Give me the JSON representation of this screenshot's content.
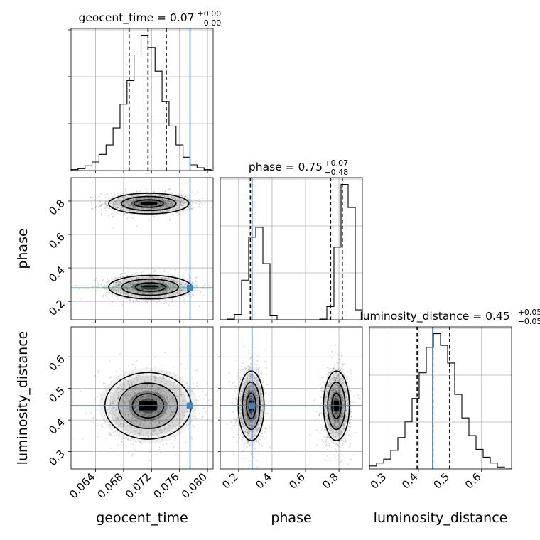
{
  "chart_data": {
    "type": "corner",
    "parameters": [
      "geocent_time",
      "phase",
      "luminosity_distance"
    ],
    "axis_labels": {
      "geocent_time": "geocent_time",
      "phase": "phase",
      "luminosity_distance": "luminosity_distance"
    },
    "ranges": {
      "geocent_time": [
        0.0605,
        0.0808
      ],
      "phase": [
        0.09,
        0.94
      ],
      "luminosity_distance": [
        0.245,
        0.695
      ]
    },
    "ticks": {
      "geocent_time": {
        "values": [
          0.064,
          0.068,
          0.072,
          0.076,
          0.08
        ],
        "labels": [
          "0.064",
          "0.068",
          "0.072",
          "0.076",
          "0.080"
        ]
      },
      "phase": {
        "values": [
          0.2,
          0.4,
          0.6,
          0.8
        ],
        "labels": [
          "0.2",
          "0.4",
          "0.6",
          "0.8"
        ]
      },
      "luminosity_distance": {
        "values": [
          0.3,
          0.4,
          0.5,
          0.6
        ],
        "labels": [
          "0.3",
          "0.4",
          "0.5",
          "0.6"
        ]
      }
    },
    "truths": {
      "geocent_time": 0.0775,
      "phase": 0.28,
      "luminosity_distance": 0.445
    },
    "titles": [
      {
        "param": "geocent_time",
        "name": "geocent_time",
        "median": "0.07",
        "plus": "+0.00",
        "minus": "−0.00"
      },
      {
        "param": "phase",
        "name": "phase",
        "median": "0.75",
        "plus": "+0.07",
        "minus": "−0.48"
      },
      {
        "param": "luminosity_distance",
        "name": "luminosity_distance",
        "median": "0.45",
        "plus": "+0.05",
        "minus": "−0.05"
      }
    ],
    "histograms": {
      "geocent_time": {
        "edges": [
          0.0605,
          0.0615,
          0.0625,
          0.0635,
          0.0645,
          0.0655,
          0.0665,
          0.0675,
          0.0685,
          0.0695,
          0.0705,
          0.0715,
          0.0725,
          0.0735,
          0.0745,
          0.0755,
          0.0765,
          0.0775,
          0.0785,
          0.0795,
          0.0805
        ],
        "counts": [
          1,
          2,
          5,
          9,
          17,
          27,
          45,
          70,
          95,
          122,
          143,
          130,
          105,
          73,
          47,
          27,
          14,
          6,
          3,
          1
        ],
        "quantiles": [
          0.0688,
          0.0715,
          0.0741
        ]
      },
      "phase": {
        "edges": [
          0.09,
          0.1325,
          0.175,
          0.2175,
          0.26,
          0.3025,
          0.345,
          0.3875,
          0.43,
          0.4725,
          0.515,
          0.5575,
          0.6,
          0.6425,
          0.685,
          0.7275,
          0.77,
          0.8125,
          0.855,
          0.8975,
          0.94
        ],
        "counts": [
          0,
          1,
          8,
          60,
          125,
          140,
          85,
          6,
          0,
          0,
          0,
          0,
          0,
          0,
          1,
          20,
          110,
          205,
          170,
          15
        ],
        "quantiles": [
          0.27,
          0.75,
          0.82
        ]
      },
      "luminosity_distance": {
        "edges": [
          0.245,
          0.2675,
          0.29,
          0.3125,
          0.335,
          0.3575,
          0.38,
          0.4025,
          0.425,
          0.4475,
          0.47,
          0.4925,
          0.515,
          0.5375,
          0.56,
          0.5825,
          0.605,
          0.6275,
          0.65,
          0.6725,
          0.695
        ],
        "counts": [
          3,
          6,
          10,
          19,
          32,
          48,
          72,
          98,
          124,
          138,
          126,
          108,
          76,
          52,
          34,
          20,
          12,
          6,
          2,
          1
        ],
        "quantiles": [
          0.396,
          0.446,
          0.499
        ]
      }
    },
    "blobs": [
      {
        "x": "geocent_time",
        "y": "phase",
        "cx": 0.0716,
        "cy": 0.785,
        "sx": 0.0026,
        "sy": 0.028
      },
      {
        "x": "geocent_time",
        "y": "phase",
        "cx": 0.0718,
        "cy": 0.285,
        "sx": 0.0027,
        "sy": 0.032
      },
      {
        "x": "geocent_time",
        "y": "luminosity_distance",
        "cx": 0.0715,
        "cy": 0.445,
        "sx": 0.0028,
        "sy": 0.048
      },
      {
        "x": "phase",
        "y": "luminosity_distance",
        "cx": 0.275,
        "cy": 0.445,
        "sx": 0.035,
        "sy": 0.05
      },
      {
        "x": "phase",
        "y": "luminosity_distance",
        "cx": 0.785,
        "cy": 0.445,
        "sx": 0.035,
        "sy": 0.05
      }
    ],
    "colors": {
      "truth": "#4682b4",
      "contour": "#000000",
      "grid": "#b0b0b0",
      "points": "#808080"
    }
  }
}
